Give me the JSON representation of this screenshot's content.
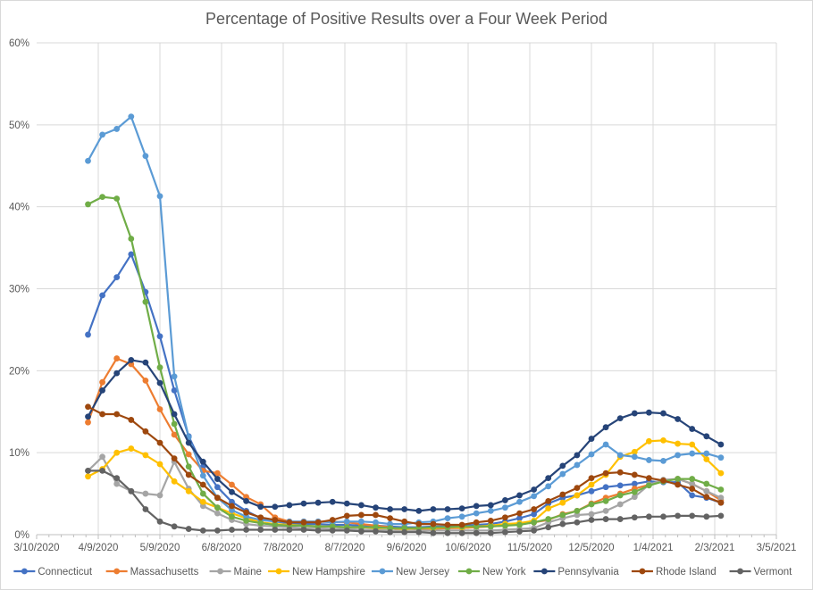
{
  "chart_data": {
    "type": "line",
    "title": "Percentage of Positive Results over a Four Week Period",
    "xlabel": "",
    "ylabel": "",
    "ylim": [
      0,
      60
    ],
    "yticks": [
      "0%",
      "10%",
      "20%",
      "30%",
      "40%",
      "50%",
      "60%"
    ],
    "xlim": [
      "2020-03-10",
      "2021-03-05"
    ],
    "xticks": [
      "3/10/2020",
      "4/9/2020",
      "5/9/2020",
      "6/8/2020",
      "7/8/2020",
      "8/7/2020",
      "9/6/2020",
      "10/6/2020",
      "11/5/2020",
      "12/5/2020",
      "1/4/2021",
      "2/3/2021",
      "3/5/2021"
    ],
    "grid": true,
    "legend_position": "bottom",
    "x": [
      "2020-04-04",
      "2020-04-11",
      "2020-04-18",
      "2020-04-25",
      "2020-05-02",
      "2020-05-09",
      "2020-05-16",
      "2020-05-23",
      "2020-05-30",
      "2020-06-06",
      "2020-06-13",
      "2020-06-20",
      "2020-06-27",
      "2020-07-04",
      "2020-07-11",
      "2020-07-18",
      "2020-07-25",
      "2020-08-01",
      "2020-08-08",
      "2020-08-15",
      "2020-08-22",
      "2020-08-29",
      "2020-09-05",
      "2020-09-12",
      "2020-09-19",
      "2020-09-26",
      "2020-10-03",
      "2020-10-10",
      "2020-10-17",
      "2020-10-24",
      "2020-10-31",
      "2020-11-07",
      "2020-11-14",
      "2020-11-21",
      "2020-11-28",
      "2020-12-05",
      "2020-12-12",
      "2020-12-19",
      "2020-12-26",
      "2021-01-02",
      "2021-01-09",
      "2021-01-16",
      "2021-01-23",
      "2021-01-30",
      "2021-02-06"
    ],
    "series": [
      {
        "name": "Connecticut",
        "color": "#4472C4",
        "values": [
          24.4,
          29.2,
          31.4,
          34.2,
          29.6,
          24.2,
          17.6,
          12.0,
          8.3,
          5.8,
          4.0,
          2.9,
          2.0,
          1.6,
          1.4,
          1.3,
          1.3,
          1.2,
          1.2,
          1.1,
          1.1,
          1.0,
          0.9,
          0.9,
          1.0,
          1.0,
          1.1,
          1.2,
          1.3,
          1.6,
          2.0,
          2.5,
          3.8,
          4.5,
          4.8,
          5.3,
          5.8,
          6.0,
          6.2,
          6.5,
          6.4,
          6.4,
          4.8,
          4.5,
          3.9
        ]
      },
      {
        "name": "Massachusetts",
        "color": "#ED7D31",
        "values": [
          13.7,
          18.6,
          21.5,
          20.8,
          18.8,
          15.3,
          12.2,
          9.8,
          7.8,
          7.5,
          6.1,
          4.6,
          3.7,
          2.1,
          1.6,
          1.6,
          1.6,
          1.6,
          1.5,
          1.3,
          1.1,
          0.9,
          0.4,
          0.6,
          0.7,
          0.8,
          0.8,
          0.9,
          1.0,
          1.1,
          1.3,
          1.5,
          1.8,
          2.5,
          2.9,
          3.8,
          4.5,
          5.0,
          5.6,
          6.1,
          6.6,
          6.8,
          6.2,
          5.3,
          4.2
        ]
      },
      {
        "name": "Maine",
        "color": "#A5A5A5",
        "values": [
          7.8,
          9.5,
          6.2,
          5.3,
          5.0,
          4.8,
          8.9,
          5.6,
          3.5,
          2.6,
          1.8,
          1.3,
          1.1,
          1.0,
          0.9,
          0.8,
          0.8,
          0.7,
          0.7,
          0.6,
          0.6,
          0.5,
          0.5,
          0.5,
          0.5,
          0.5,
          0.5,
          0.5,
          0.5,
          0.6,
          0.7,
          0.8,
          1.5,
          2.0,
          2.4,
          2.5,
          2.9,
          3.7,
          4.6,
          6.1,
          6.7,
          6.8,
          6.2,
          5.3,
          4.5
        ]
      },
      {
        "name": "New Hampshire",
        "color": "#FFC000",
        "values": [
          7.1,
          8.0,
          10.0,
          10.5,
          9.7,
          8.6,
          6.5,
          5.3,
          4.0,
          3.3,
          2.6,
          2.0,
          1.5,
          1.3,
          1.2,
          1.1,
          1.0,
          1.0,
          0.9,
          0.9,
          0.8,
          0.8,
          0.7,
          0.8,
          0.8,
          0.9,
          0.9,
          1.0,
          1.1,
          1.3,
          1.4,
          1.7,
          3.2,
          3.9,
          4.8,
          6.1,
          7.3,
          9.5,
          10.1,
          11.4,
          11.5,
          11.1,
          11.0,
          9.2,
          7.5
        ]
      },
      {
        "name": "New Jersey",
        "color": "#5B9BD5",
        "values": [
          45.6,
          48.8,
          49.5,
          51.0,
          46.2,
          41.3,
          19.3,
          11.9,
          7.2,
          4.5,
          3.0,
          2.2,
          1.8,
          1.6,
          1.6,
          1.6,
          1.6,
          1.5,
          1.6,
          1.6,
          1.5,
          1.3,
          1.3,
          1.5,
          1.6,
          2.0,
          2.2,
          2.6,
          2.9,
          3.3,
          4.0,
          4.7,
          5.9,
          7.4,
          8.5,
          9.8,
          11.0,
          9.7,
          9.5,
          9.1,
          9.0,
          9.7,
          9.9,
          9.9,
          9.4
        ]
      },
      {
        "name": "New York",
        "color": "#70AD47",
        "values": [
          40.3,
          41.2,
          41.0,
          36.1,
          28.4,
          20.4,
          13.5,
          8.3,
          5.0,
          3.3,
          2.2,
          1.7,
          1.4,
          1.2,
          1.1,
          1.1,
          1.0,
          1.0,
          0.9,
          0.9,
          0.9,
          0.8,
          0.8,
          0.8,
          0.9,
          0.9,
          1.0,
          1.0,
          1.0,
          1.1,
          1.2,
          1.5,
          1.9,
          2.4,
          2.9,
          3.7,
          4.1,
          4.8,
          5.2,
          6.0,
          6.5,
          6.8,
          6.8,
          6.2,
          5.5
        ]
      },
      {
        "name": "Pennsylvania",
        "color": "#264478",
        "values": [
          14.4,
          17.6,
          19.7,
          21.3,
          21.0,
          18.5,
          14.7,
          11.2,
          8.9,
          6.8,
          5.2,
          4.1,
          3.4,
          3.4,
          3.6,
          3.8,
          3.9,
          4.0,
          3.8,
          3.6,
          3.3,
          3.1,
          3.1,
          2.9,
          3.1,
          3.1,
          3.2,
          3.5,
          3.6,
          4.2,
          4.8,
          5.5,
          6.9,
          8.4,
          9.7,
          11.7,
          13.1,
          14.2,
          14.8,
          14.9,
          14.8,
          14.1,
          12.9,
          12.0,
          11.0
        ]
      },
      {
        "name": "Rhode Island",
        "color": "#9E480E",
        "values": [
          15.6,
          14.7,
          14.7,
          14.0,
          12.6,
          11.2,
          9.3,
          7.3,
          6.1,
          4.5,
          3.5,
          2.7,
          2.1,
          1.8,
          1.5,
          1.5,
          1.5,
          1.8,
          2.3,
          2.4,
          2.4,
          2.0,
          1.6,
          1.3,
          1.3,
          1.2,
          1.2,
          1.5,
          1.7,
          2.1,
          2.6,
          3.1,
          4.1,
          4.9,
          5.7,
          6.9,
          7.5,
          7.6,
          7.3,
          6.9,
          6.6,
          6.1,
          5.6,
          4.6,
          3.9
        ]
      },
      {
        "name": "Vermont",
        "color": "#636363",
        "values": [
          7.8,
          7.8,
          6.9,
          5.3,
          3.1,
          1.6,
          1.0,
          0.7,
          0.5,
          0.5,
          0.6,
          0.6,
          0.6,
          0.6,
          0.6,
          0.6,
          0.5,
          0.5,
          0.5,
          0.4,
          0.4,
          0.3,
          0.3,
          0.3,
          0.2,
          0.2,
          0.2,
          0.2,
          0.2,
          0.3,
          0.4,
          0.5,
          0.9,
          1.3,
          1.5,
          1.8,
          1.9,
          1.9,
          2.1,
          2.2,
          2.2,
          2.3,
          2.3,
          2.2,
          2.3
        ]
      }
    ]
  }
}
